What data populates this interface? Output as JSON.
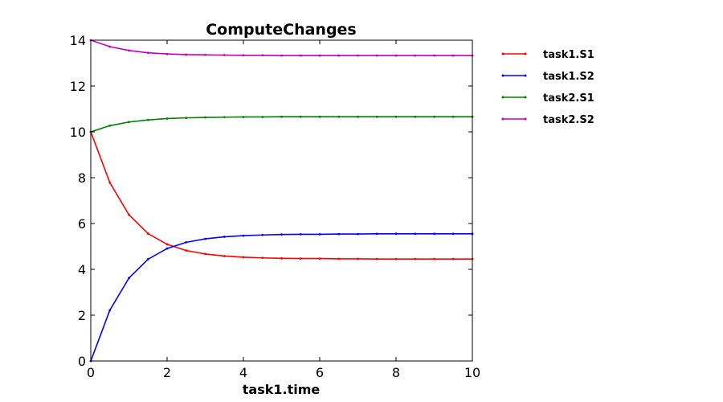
{
  "chart_data": {
    "type": "line",
    "title": "ComputeChanges",
    "xlabel": "task1.time",
    "ylabel": "",
    "xlim": [
      0,
      10
    ],
    "ylim": [
      0,
      14
    ],
    "xticks": [
      "0",
      "2",
      "4",
      "6",
      "8",
      "10"
    ],
    "yticks": [
      "0",
      "2",
      "4",
      "6",
      "8",
      "10",
      "12",
      "14"
    ],
    "grid": false,
    "legend_position": "outside-right-top",
    "x": [
      0,
      0.5,
      1,
      1.5,
      2,
      2.5,
      3,
      3.5,
      4,
      4.5,
      5,
      5.5,
      6,
      6.5,
      7,
      7.5,
      8,
      8.5,
      9,
      9.5,
      10
    ],
    "series": [
      {
        "name": "task1.S1",
        "color": "#ff0000",
        "values": [
          10.0,
          7.78,
          6.38,
          5.56,
          5.09,
          4.82,
          4.67,
          4.58,
          4.53,
          4.5,
          4.48,
          4.47,
          4.47,
          4.46,
          4.46,
          4.45,
          4.45,
          4.45,
          4.45,
          4.45,
          4.45
        ]
      },
      {
        "name": "task1.S2",
        "color": "#0000ff",
        "values": [
          0.0,
          2.22,
          3.62,
          4.44,
          4.91,
          5.18,
          5.33,
          5.42,
          5.47,
          5.5,
          5.52,
          5.53,
          5.53,
          5.54,
          5.54,
          5.55,
          5.55,
          5.55,
          5.55,
          5.55,
          5.55
        ]
      },
      {
        "name": "task2.S1",
        "color": "#008000",
        "values": [
          10.0,
          10.27,
          10.43,
          10.52,
          10.58,
          10.61,
          10.63,
          10.64,
          10.65,
          10.65,
          10.66,
          10.66,
          10.66,
          10.66,
          10.66,
          10.66,
          10.66,
          10.66,
          10.66,
          10.66,
          10.66
        ]
      },
      {
        "name": "task2.S2",
        "color": "#bf00bf",
        "values": [
          14.0,
          13.72,
          13.55,
          13.45,
          13.4,
          13.37,
          13.36,
          13.35,
          13.34,
          13.34,
          13.33,
          13.33,
          13.33,
          13.33,
          13.33,
          13.33,
          13.33,
          13.33,
          13.33,
          13.33,
          13.33
        ]
      }
    ]
  }
}
